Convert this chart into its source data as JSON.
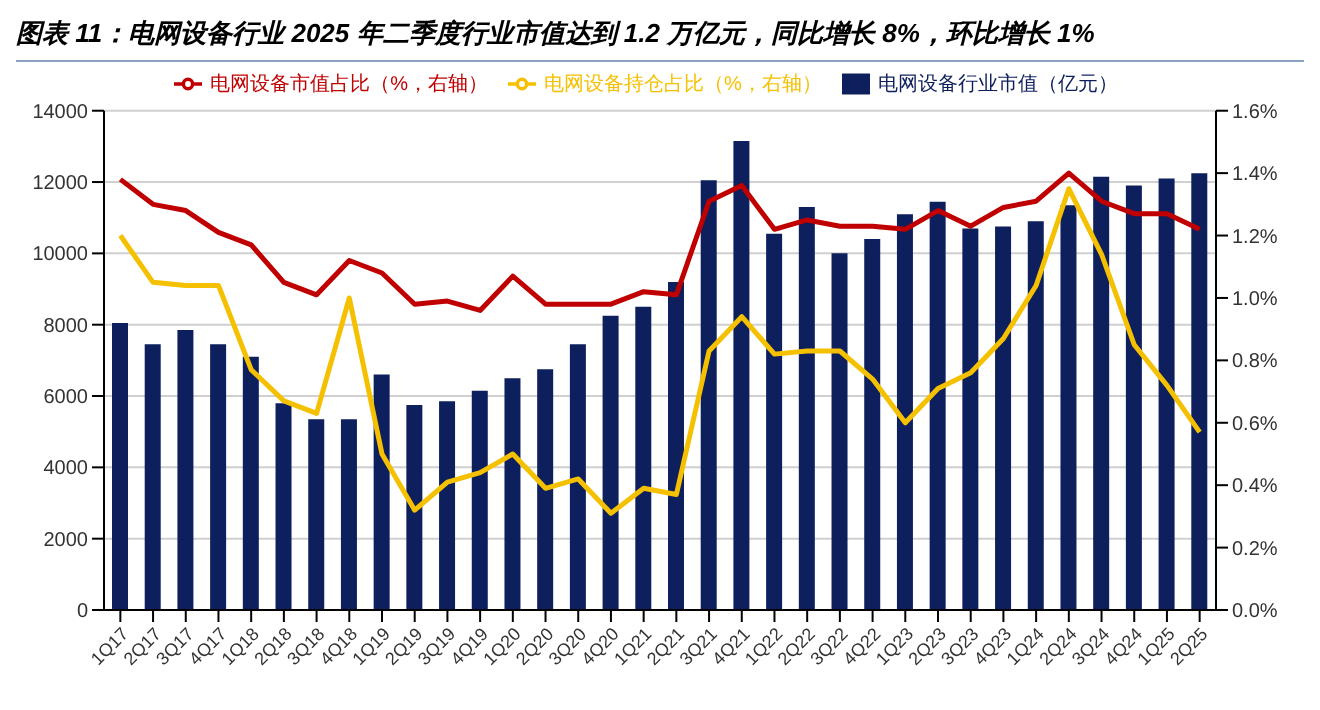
{
  "chart_data": {
    "type": "bar",
    "title": "图表 11：电网设备行业 2025 年二季度行业市值达到 1.2 万亿元，同比增长 8%，环比增长 1%",
    "categories": [
      "1Q17",
      "2Q17",
      "3Q17",
      "4Q17",
      "1Q18",
      "2Q18",
      "3Q18",
      "4Q18",
      "1Q19",
      "2Q19",
      "3Q19",
      "4Q19",
      "1Q20",
      "2Q20",
      "3Q20",
      "4Q20",
      "1Q21",
      "2Q21",
      "3Q21",
      "4Q21",
      "1Q22",
      "2Q22",
      "3Q22",
      "4Q22",
      "1Q23",
      "2Q23",
      "3Q23",
      "4Q23",
      "1Q24",
      "2Q24",
      "3Q24",
      "4Q24",
      "1Q25",
      "2Q25"
    ],
    "series": [
      {
        "name": "电网设备行业市值（亿元）",
        "color": "#0d1f5c",
        "values": [
          8050,
          7450,
          7850,
          7450,
          7100,
          5800,
          5350,
          5350,
          6600,
          5750,
          5850,
          6150,
          6500,
          6750,
          7450,
          8250,
          8500,
          9200,
          12050,
          13150,
          10550,
          11300,
          10000,
          10400,
          11100,
          11450,
          10700,
          10750,
          10900,
          11350,
          12150,
          11900,
          12100,
          12250
        ]
      },
      {
        "name": "电网设备市值占比（%，右轴）",
        "type": "line",
        "axis": "y2",
        "color": "#c00000",
        "values": [
          1.38,
          1.3,
          1.28,
          1.21,
          1.17,
          1.05,
          1.01,
          1.12,
          1.08,
          0.98,
          0.99,
          0.96,
          1.07,
          0.98,
          0.98,
          0.98,
          1.02,
          1.01,
          1.31,
          1.36,
          1.22,
          1.25,
          1.23,
          1.23,
          1.22,
          1.28,
          1.23,
          1.29,
          1.31,
          1.4,
          1.31,
          1.27,
          1.27,
          1.22
        ]
      },
      {
        "name": "电网设备持仓占比（%，右轴）",
        "type": "line",
        "axis": "y2",
        "color": "#f5c000",
        "values": [
          1.2,
          1.05,
          1.04,
          1.04,
          0.77,
          0.67,
          0.63,
          1.0,
          0.5,
          0.32,
          0.41,
          0.44,
          0.5,
          0.39,
          0.42,
          0.31,
          0.39,
          0.37,
          0.83,
          0.94,
          0.82,
          0.83,
          0.83,
          0.74,
          0.6,
          0.71,
          0.76,
          0.87,
          1.04,
          1.35,
          1.14,
          0.85,
          0.72,
          0.57
        ]
      }
    ],
    "ylim": [
      0,
      14000
    ],
    "yticks": [
      0,
      2000,
      4000,
      6000,
      8000,
      10000,
      12000,
      14000
    ],
    "y2lim": [
      0,
      1.6
    ],
    "y2ticks": [
      {
        "value": 0,
        "label": "0.0%"
      },
      {
        "value": 0.2,
        "label": "0.2%"
      },
      {
        "value": 0.4,
        "label": "0.4%"
      },
      {
        "value": 0.6,
        "label": "0.6%"
      },
      {
        "value": 0.8,
        "label": "0.8%"
      },
      {
        "value": 1.0,
        "label": "1.0%"
      },
      {
        "value": 1.2,
        "label": "1.2%"
      },
      {
        "value": 1.4,
        "label": "1.4%"
      },
      {
        "value": 1.6,
        "label": "1.6%"
      }
    ],
    "grid": "y",
    "legend": "top",
    "marker": "none"
  }
}
